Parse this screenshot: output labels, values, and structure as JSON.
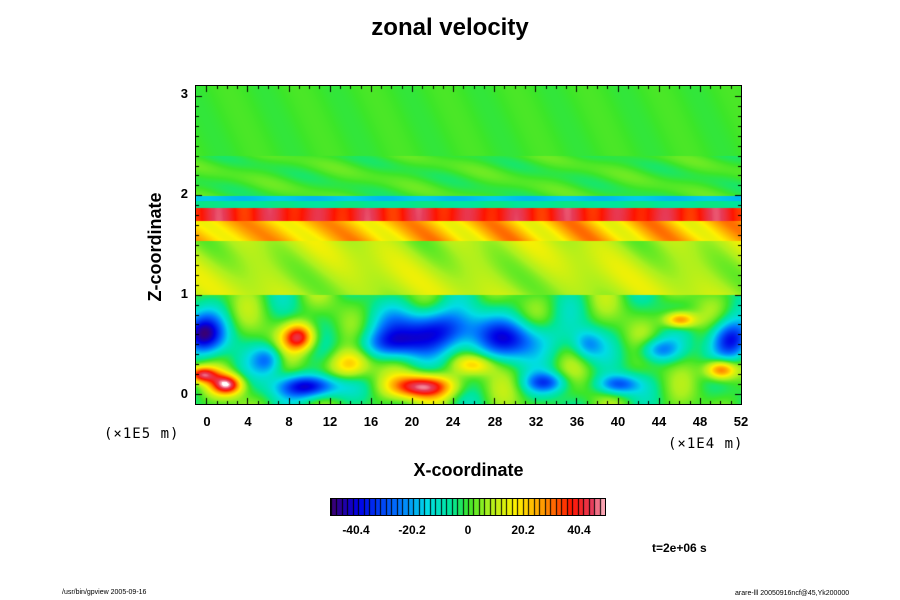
{
  "chart_data": {
    "type": "heatmap",
    "title": "zonal velocity",
    "xlabel": "X-coordinate",
    "ylabel": "Z-coordinate",
    "x_unit_label": "(×1E4 m)",
    "z_unit_label": "(×1E5 m)",
    "xlim": [
      -1,
      52
    ],
    "ylim": [
      -0.1,
      3.1
    ],
    "x_ticks": [
      "0",
      "4",
      "8",
      "12",
      "16",
      "20",
      "24",
      "28",
      "32",
      "36",
      "40",
      "44",
      "48",
      "52"
    ],
    "y_ticks": [
      "0",
      "1",
      "2",
      "3"
    ],
    "colorbar": {
      "range": [
        -50,
        50
      ],
      "tick_labels": [
        "-40.4",
        "-20.2",
        "0",
        "20.2",
        "40.4"
      ],
      "tick_values": [
        -40.4,
        -20.2,
        0,
        20.2,
        40.4
      ]
    },
    "time_label": "t=2e+06 s"
  },
  "footer": {
    "left": "/usr/bin/gpview 2005-09-16",
    "right": "arare-lll 20050916ncf@45,Yk200000"
  }
}
